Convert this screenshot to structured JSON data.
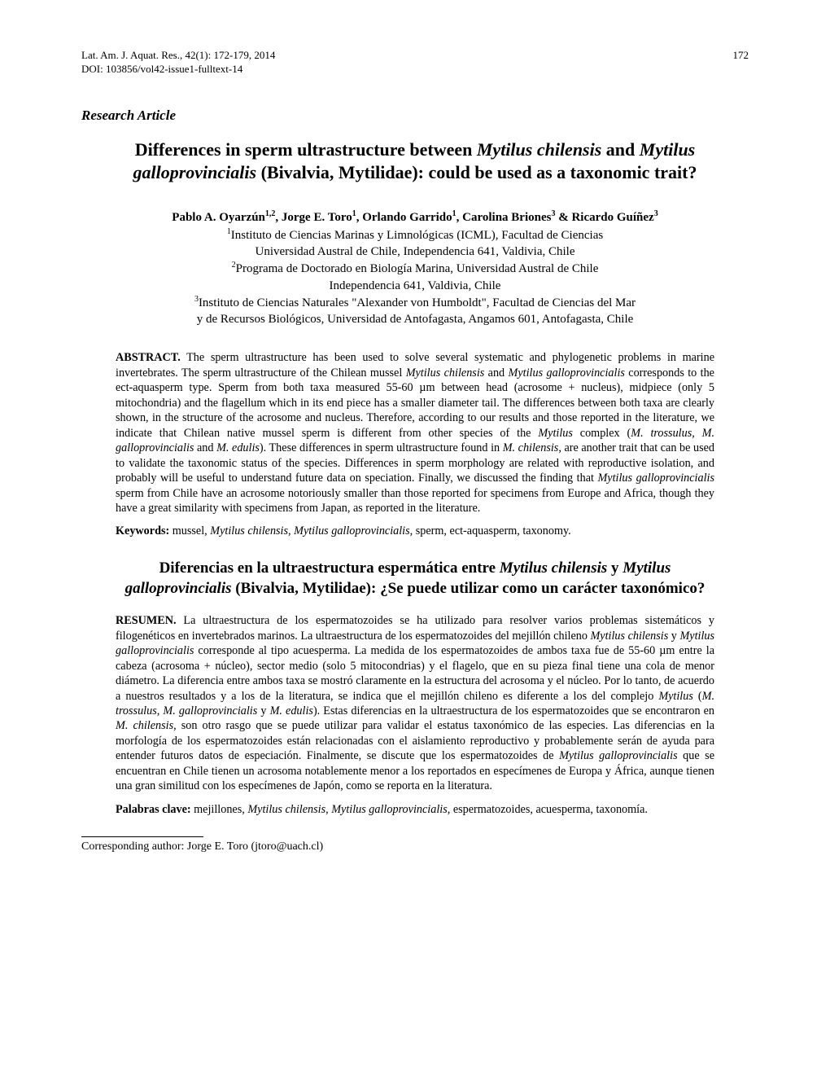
{
  "header": {
    "journal_line": "Lat. Am. J. Aquat. Res., 42(1): 172-179, 2014",
    "doi_line": "DOI: 103856/vol42-issue1-fulltext-14",
    "page_number": "172"
  },
  "section_heading": "Research Article",
  "title": {
    "pre": "Differences in sperm ultrastructure between ",
    "it1": "Mytilus chilensis",
    "mid1": " and ",
    "it2": "Mytilus galloprovincialis",
    "post": " (Bivalvia, Mytilidae): could be used as a taxonomic trait?"
  },
  "authors": {
    "a1": "Pablo A. Oyarzún",
    "s1": "1,2",
    "a2": ", Jorge E. Toro",
    "s2": "1",
    "a3": ", Orlando Garrido",
    "s3": "1",
    "a4": ", Carolina Briones",
    "s4": "3",
    "a5": " & Ricardo Guíñez",
    "s5": "3"
  },
  "affiliations": {
    "s1": "1",
    "l1a": "Instituto de Ciencias Marinas y Limnológicas (ICML), Facultad de Ciencias",
    "l1b": "Universidad Austral de Chile, Independencia 641, Valdivia, Chile",
    "s2": "2",
    "l2a": "Programa de Doctorado en Biología Marina, Universidad Austral de Chile",
    "l2b": "Independencia 641, Valdivia, Chile",
    "s3": "3",
    "l3a": "Instituto de Ciencias Naturales \"Alexander von Humboldt\", Facultad de Ciencias del Mar",
    "l3b": "y de Recursos Biológicos, Universidad de Antofagasta, Angamos 601, Antofagasta, Chile"
  },
  "abstract_en": {
    "label": "ABSTRACT.",
    "p1": " The sperm ultrastructure has been used to solve several systematic and phylogenetic problems in marine invertebrates. The sperm ultrastructure of the Chilean mussel ",
    "it1": "Mytilus chilensis",
    "p2": " and ",
    "it2": "Mytilus galloprovincialis",
    "p3": " corresponds to the ect-aquasperm type. Sperm from both taxa measured 55-60 µm between head (acrosome + nucleus), midpiece (only 5 mitochondria) and the flagellum which in its end piece has a smaller diameter tail. The differences between both taxa are clearly shown, in the structure of the acrosome and nucleus. Therefore, according to our results and those reported in the literature, we indicate that Chilean native mussel sperm is different from other species of the ",
    "it3": "Mytilus",
    "p4": " complex (",
    "it4": "M. trossulus",
    "p5": ", ",
    "it5": "M. galloprovincialis",
    "p6": " and ",
    "it6": "M. edulis",
    "p7": "). These differences in sperm ultrastructure found in ",
    "it7": "M. chilensis",
    "p8": ", are another trait that can be used to validate the taxonomic status of the species. Differences in sperm morphology are related with reproductive isolation, and probably will be useful to understand future data on speciation. Finally, we discussed the finding that ",
    "it8": "Mytilus galloprovincialis",
    "p9": " sperm from Chile have an acrosome notoriously smaller than those reported for specimens from Europe and Africa, though they have a great similarity with specimens from Japan, as reported in the literature."
  },
  "keywords_en": {
    "label": "Keywords:",
    "p1": " mussel, ",
    "it1": "Mytilus chilensis",
    "p2": ", ",
    "it2": "Mytilus galloprovincialis,",
    "p3": " sperm, ect-aquasperm, taxonomy."
  },
  "title_es": {
    "pre": "Diferencias en la ultraestructura espermática entre ",
    "it1": "Mytilus chilensis",
    "mid1": " y ",
    "it2": "Mytilus galloprovincialis",
    "post": " (Bivalvia, Mytilidae): ¿Se puede utilizar como un carácter taxonómico?"
  },
  "abstract_es": {
    "label": "RESUMEN.",
    "p1": " La ultraestructura de los espermatozoides se ha utilizado para resolver varios problemas sistemáticos y filogenéticos en invertebrados marinos. La ultraestructura de los espermatozoides del mejillón chileno ",
    "it1": "Mytilus chilensis",
    "p2": " y ",
    "it2": "Mytilus galloprovincialis",
    "p3": " corresponde al tipo acuesperma. La medida de los espermatozoides de ambos taxa fue de 55-60 µm entre la cabeza (acrosoma + núcleo), sector medio (solo 5 mitocondrias) y el flagelo, que en su pieza final tiene una cola de menor diámetro. La diferencia entre ambos taxa se mostró claramente en la estructura del acrosoma y el núcleo. Por lo tanto, de acuerdo a nuestros resultados y a los de la literatura, se indica que el mejillón chileno es diferente a los del complejo ",
    "it3": "Mytilus",
    "p4": " (",
    "it4": "M. trossulus",
    "p5": ", ",
    "it5": "M. galloprovincialis",
    "p6": " y ",
    "it6": "M. edulis",
    "p7": "). Estas diferencias en la ultraestructura de los espermatozoides que se encontraron en ",
    "it7": "M. chilensis",
    "p8": ", son otro rasgo que se puede utilizar para validar el estatus taxonómico de las especies. Las diferencias en la morfología de los espermatozoides están relacionadas con el aislamiento reproductivo y probablemente serán de ayuda para entender futuros datos de especiación. Finalmente, se discute que los espermatozoides de ",
    "it8": "Mytilus galloprovincialis",
    "p9": " que se encuentran en Chile tienen un acrosoma notablemente menor a los reportados en especímenes de Europa y África, aunque tienen una gran similitud con los especímenes de Japón, como se reporta en la literatura."
  },
  "keywords_es": {
    "label": "Palabras clave:",
    "p1": " mejillones, ",
    "it1": "Mytilus chilensis",
    "p2": ", ",
    "it2": "Mytilus galloprovincialis,",
    "p3": " espermatozoides, acuesperma, taxonomía."
  },
  "corresponding": "Corresponding author: Jorge E. Toro (jtoro@uach.cl)"
}
